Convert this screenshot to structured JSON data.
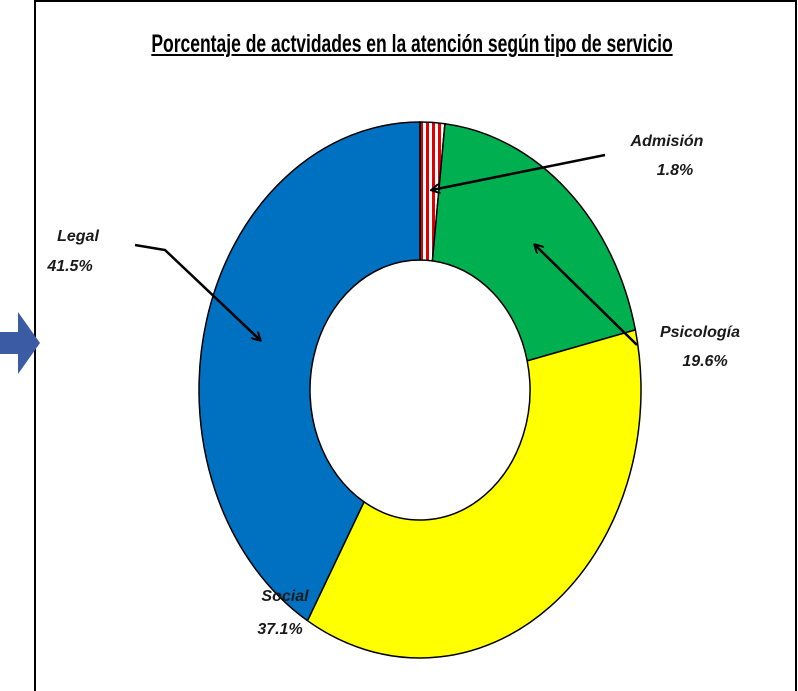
{
  "chart_data": {
    "type": "donut",
    "title": "Porcentaje de actvidades en la atención según tipo de servicio",
    "categories": [
      "Admisión",
      "Psicología",
      "Social",
      "Legal"
    ],
    "values": [
      1.8,
      19.6,
      37.1,
      41.5
    ],
    "value_labels": [
      "1.8%",
      "19.6%",
      "37.1%",
      "41.5%"
    ],
    "colors": [
      "#e00000",
      "#00b050",
      "#ffff00",
      "#0070c0"
    ]
  }
}
